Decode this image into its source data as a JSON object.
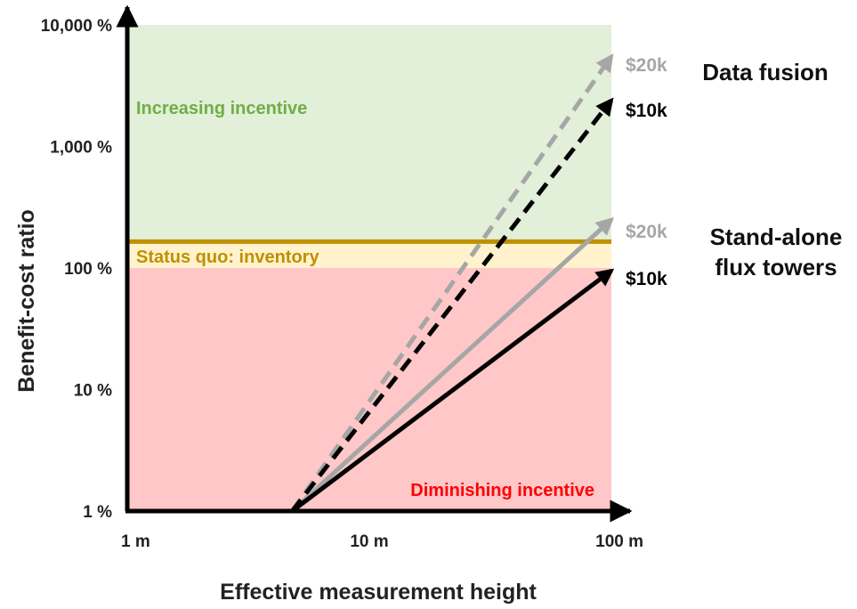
{
  "chart_data": {
    "type": "line",
    "xlabel": "Effective measurement height",
    "ylabel": "Benefit-cost ratio",
    "x_scale": "log",
    "y_scale": "log",
    "xlim": [
      1,
      100
    ],
    "ylim": [
      1,
      10000
    ],
    "x_ticks": [
      {
        "value": 1,
        "label": "1 m"
      },
      {
        "value": 10,
        "label": "10 m"
      },
      {
        "value": 100,
        "label": "100 m"
      }
    ],
    "y_ticks": [
      {
        "value": 1,
        "label": "1 %"
      },
      {
        "value": 10,
        "label": "10 %"
      },
      {
        "value": 100,
        "label": "100 %"
      },
      {
        "value": 1000,
        "label": "1,000 %"
      },
      {
        "value": 10000,
        "label": "10,000 %"
      }
    ],
    "zones": [
      {
        "name": "increasing",
        "label": "Increasing incentive",
        "y_from": 165,
        "y_to": 10000,
        "color": "#e2efd9",
        "label_color": "#70ad47"
      },
      {
        "name": "status-quo",
        "label": "Status quo: inventory",
        "y_from": 100,
        "y_to": 165,
        "color": "#fff2cc",
        "label_color": "#bf9000"
      },
      {
        "name": "diminishing",
        "label": "Diminishing incentive",
        "y_from": 1,
        "y_to": 100,
        "color": "#ffc7c7",
        "label_color": "#ff0000"
      }
    ],
    "status_quo_line": {
      "y": 165,
      "color": "#bf9000"
    },
    "groups": [
      {
        "label_lines": [
          "Data fusion"
        ],
        "series": [
          "fusion-20k",
          "fusion-10k"
        ]
      },
      {
        "label_lines": [
          "Stand-alone",
          "flux towers"
        ],
        "series": [
          "tower-20k",
          "tower-10k"
        ]
      }
    ],
    "series": [
      {
        "id": "fusion-20k",
        "name": "$20k",
        "style": "dashed",
        "color": "#a6a6a6",
        "label_color": "#a6a6a6",
        "points": [
          {
            "x": 4.8,
            "y": 1
          },
          {
            "x": 100,
            "y": 5500
          }
        ]
      },
      {
        "id": "fusion-10k",
        "name": "$10k",
        "style": "dashed",
        "color": "#000000",
        "label_color": "#000000",
        "points": [
          {
            "x": 4.8,
            "y": 1
          },
          {
            "x": 100,
            "y": 2400
          }
        ]
      },
      {
        "id": "tower-20k",
        "name": "$20k",
        "style": "solid",
        "color": "#a6a6a6",
        "label_color": "#a6a6a6",
        "points": [
          {
            "x": 4.8,
            "y": 1
          },
          {
            "x": 100,
            "y": 250
          }
        ]
      },
      {
        "id": "tower-10k",
        "name": "$10k",
        "style": "solid",
        "color": "#000000",
        "label_color": "#000000",
        "points": [
          {
            "x": 4.8,
            "y": 1
          },
          {
            "x": 100,
            "y": 95
          }
        ]
      }
    ]
  }
}
